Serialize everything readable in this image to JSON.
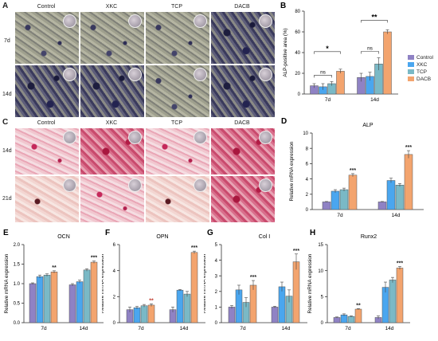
{
  "panels": {
    "A": {
      "letter": "A",
      "columns": [
        "Control",
        "XKC",
        "TCP",
        "DACB"
      ],
      "rows": [
        "7d",
        "14d"
      ]
    },
    "C": {
      "letter": "C",
      "columns": [
        "Control",
        "XKC",
        "TCP",
        "DACB"
      ],
      "rows": [
        "14d",
        "21d"
      ]
    }
  },
  "colors": {
    "Control": "#8f82c4",
    "XKC": "#4aa6ef",
    "TCP": "#7ab9c6",
    "DACB": "#f3a46e"
  },
  "legend": [
    "Control",
    "XKC",
    "TCP",
    "DACB"
  ],
  "chart_data": [
    {
      "id": "B",
      "letter": "B",
      "type": "bar",
      "title": "",
      "xlabel": "",
      "ylabel": "ALP-positive area (%)",
      "categories": [
        "7d",
        "14d"
      ],
      "ylim": [
        0,
        80
      ],
      "yticks": [
        "0",
        "20",
        "40",
        "60",
        "80"
      ],
      "series": [
        {
          "name": "Control",
          "values": [
            8,
            16
          ],
          "errors": [
            2,
            4
          ]
        },
        {
          "name": "XKC",
          "values": [
            7,
            17
          ],
          "errors": [
            3,
            4
          ]
        },
        {
          "name": "TCP",
          "values": [
            10,
            29
          ],
          "errors": [
            2,
            6
          ]
        },
        {
          "name": "DACB",
          "values": [
            22,
            60
          ],
          "errors": [
            2,
            2
          ]
        }
      ],
      "annotations": [
        "ns",
        "*",
        "ns",
        "**"
      ]
    },
    {
      "id": "D",
      "letter": "D",
      "type": "bar",
      "title": "ALP",
      "xlabel": "",
      "ylabel": "Relative mRNA expression",
      "categories": [
        "7d",
        "14d"
      ],
      "ylim": [
        0,
        10
      ],
      "yticks": [
        "0",
        "2",
        "4",
        "6",
        "8",
        "10"
      ],
      "series": [
        {
          "name": "Control",
          "values": [
            1.0,
            1.0
          ],
          "errors": [
            0.05,
            0.05
          ]
        },
        {
          "name": "XKC",
          "values": [
            2.4,
            3.8
          ],
          "errors": [
            0.2,
            0.3
          ]
        },
        {
          "name": "TCP",
          "values": [
            2.6,
            3.2
          ],
          "errors": [
            0.2,
            0.2
          ]
        },
        {
          "name": "DACB",
          "values": [
            4.5,
            7.2
          ],
          "errors": [
            0.2,
            0.5
          ]
        }
      ],
      "annotations": [
        "***",
        "***"
      ]
    },
    {
      "id": "E",
      "letter": "E",
      "type": "bar",
      "title": "OCN",
      "xlabel": "",
      "ylabel": "Relative mRNA expression",
      "categories": [
        "7d",
        "14d"
      ],
      "ylim": [
        0,
        2.0
      ],
      "yticks": [
        "0.0",
        "0.5",
        "1.0",
        "1.5",
        "2.0"
      ],
      "series": [
        {
          "name": "Control",
          "values": [
            1.0,
            0.97
          ],
          "errors": [
            0.02,
            0.03
          ]
        },
        {
          "name": "XKC",
          "values": [
            1.18,
            1.05
          ],
          "errors": [
            0.04,
            0.04
          ]
        },
        {
          "name": "TCP",
          "values": [
            1.22,
            1.35
          ],
          "errors": [
            0.03,
            0.03
          ]
        },
        {
          "name": "DACB",
          "values": [
            1.3,
            1.55
          ],
          "errors": [
            0.03,
            0.03
          ]
        }
      ],
      "annotations": [
        "**",
        "***"
      ]
    },
    {
      "id": "F",
      "letter": "F",
      "type": "bar",
      "title": "OPN",
      "xlabel": "",
      "ylabel": "Relative mRNA expression",
      "categories": [
        "7d",
        "14d"
      ],
      "ylim": [
        0,
        6
      ],
      "yticks": [
        "0",
        "2",
        "4",
        "6"
      ],
      "series": [
        {
          "name": "Control",
          "values": [
            1.0,
            1.0
          ],
          "errors": [
            0.2,
            0.2
          ]
        },
        {
          "name": "XKC",
          "values": [
            1.15,
            2.5
          ],
          "errors": [
            0.1,
            0.05
          ]
        },
        {
          "name": "TCP",
          "values": [
            1.3,
            2.2
          ],
          "errors": [
            0.1,
            0.2
          ]
        },
        {
          "name": "DACB",
          "values": [
            1.35,
            5.4
          ],
          "errors": [
            0.1,
            0.1
          ]
        }
      ],
      "annotations": [
        "**",
        "***"
      ]
    },
    {
      "id": "G",
      "letter": "G",
      "type": "bar",
      "title": "Col I",
      "xlabel": "",
      "ylabel": "Relative mRNA expression",
      "categories": [
        "7d",
        "14d"
      ],
      "ylim": [
        0,
        5
      ],
      "yticks": [
        "0",
        "1",
        "2",
        "3",
        "4",
        "5"
      ],
      "series": [
        {
          "name": "Control",
          "values": [
            1.0,
            1.0
          ],
          "errors": [
            0.1,
            0.05
          ]
        },
        {
          "name": "XKC",
          "values": [
            2.1,
            2.3
          ],
          "errors": [
            0.3,
            0.3
          ]
        },
        {
          "name": "TCP",
          "values": [
            1.3,
            1.7
          ],
          "errors": [
            0.3,
            0.4
          ]
        },
        {
          "name": "DACB",
          "values": [
            2.4,
            3.9
          ],
          "errors": [
            0.3,
            0.5
          ]
        }
      ],
      "annotations": [
        "***",
        "***"
      ]
    },
    {
      "id": "H",
      "letter": "H",
      "type": "bar",
      "title": "Runx2",
      "xlabel": "",
      "ylabel": "Relative mRNA expression",
      "categories": [
        "7d",
        "14d"
      ],
      "ylim": [
        0,
        15
      ],
      "yticks": [
        "0",
        "5",
        "10",
        "15"
      ],
      "series": [
        {
          "name": "Control",
          "values": [
            1.0,
            1.0
          ],
          "errors": [
            0.1,
            0.3
          ]
        },
        {
          "name": "XKC",
          "values": [
            1.5,
            6.8
          ],
          "errors": [
            0.2,
            1.0
          ]
        },
        {
          "name": "TCP",
          "values": [
            1.2,
            8.2
          ],
          "errors": [
            0.1,
            0.5
          ]
        },
        {
          "name": "DACB",
          "values": [
            2.6,
            10.5
          ],
          "errors": [
            0.1,
            0.3
          ]
        }
      ],
      "annotations": [
        "**",
        "***"
      ]
    }
  ]
}
